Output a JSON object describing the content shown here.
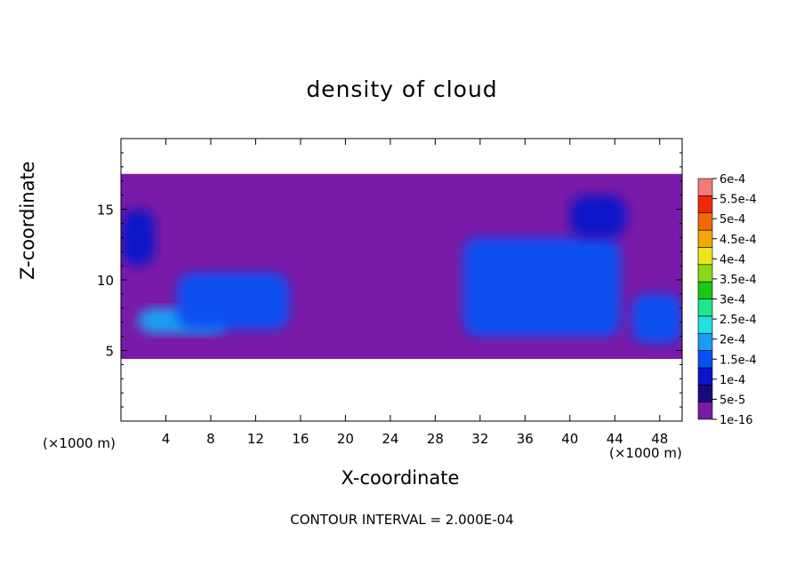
{
  "chart_data": {
    "type": "heatmap",
    "title": "density of cloud",
    "xlabel": "X-coordinate",
    "ylabel": "Z-coordinate",
    "x_unit": "(×1000 m)",
    "x_unit_right": "(×1000 m)",
    "xlim": [
      0,
      50
    ],
    "ylim": [
      0,
      20
    ],
    "x_ticks": [
      4,
      8,
      12,
      16,
      20,
      24,
      28,
      32,
      36,
      40,
      44,
      48
    ],
    "y_ticks": [
      5,
      10,
      15
    ],
    "colorbar": {
      "labels": [
        "6e-4",
        "5.5e-4",
        "5e-4",
        "4.5e-4",
        "4e-4",
        "3.5e-4",
        "3e-4",
        "2.5e-4",
        "2e-4",
        "1.5e-4",
        "1e-4",
        "5e-5",
        "1e-16"
      ],
      "colors": [
        "#7a1aa8",
        "#1a0a80",
        "#0a14c8",
        "#0a50f0",
        "#1a9cf2",
        "#22e0e0",
        "#1ce88a",
        "#18c818",
        "#8ad818",
        "#e8e818",
        "#f2a808",
        "#f26a08",
        "#f02808",
        "#f47a7a"
      ]
    },
    "clouds": [
      {
        "x": 0,
        "z": 17.5,
        "w": 50,
        "h": 13.1,
        "v": 1e-16
      },
      {
        "x": 1.5,
        "z": 8.0,
        "w": 8,
        "h": 1.8,
        "v": 0.00018
      },
      {
        "x": 32.5,
        "z": 11.0,
        "w": 7.5,
        "h": 2.5,
        "v": 0.00018
      },
      {
        "x": 5,
        "z": 10.5,
        "w": 10,
        "h": 4,
        "v": 0.00012
      },
      {
        "x": 30.5,
        "z": 13.0,
        "w": 14,
        "h": 7,
        "v": 0.00012
      },
      {
        "x": 0,
        "z": 15,
        "w": 3,
        "h": 4,
        "v": 6e-05
      },
      {
        "x": 40,
        "z": 16,
        "w": 5,
        "h": 3,
        "v": 6e-05
      },
      {
        "x": 45.5,
        "z": 9,
        "w": 4.5,
        "h": 3.5,
        "v": 0.00012
      }
    ],
    "contour_interval": "CONTOUR INTERVAL = 2.000E-04"
  }
}
